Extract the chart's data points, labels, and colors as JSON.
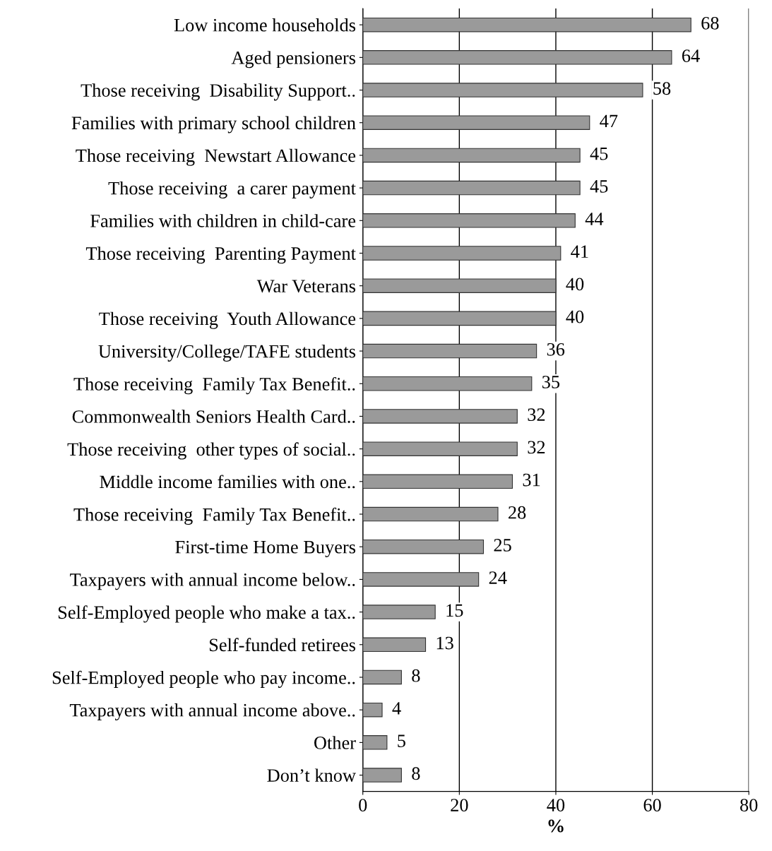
{
  "chart_data": {
    "type": "bar",
    "orientation": "horizontal",
    "xlabel": "%",
    "categories": [
      "Low income households",
      "Aged pensioners",
      "Those receiving  Disability Support..",
      "Families with primary school children",
      "Those receiving  Newstart Allowance",
      "Those receiving  a carer payment",
      "Families with children in child-care",
      "Those receiving  Parenting Payment",
      "War Veterans",
      "Those receiving  Youth Allowance",
      "University/College/TAFE students",
      "Those receiving  Family Tax Benefit..",
      "Commonwealth Seniors Health Card..",
      "Those receiving  other types of social..",
      "Middle income families with one..",
      "Those receiving  Family Tax Benefit..",
      "First-time Home Buyers",
      "Taxpayers with annual income below..",
      "Self-Employed people who make a tax..",
      "Self-funded retirees",
      "Self-Employed people who pay income..",
      "Taxpayers with annual income above..",
      "Other",
      "Don’t know"
    ],
    "values": [
      68,
      64,
      58,
      47,
      45,
      45,
      44,
      41,
      40,
      40,
      36,
      35,
      32,
      32,
      31,
      28,
      25,
      24,
      15,
      13,
      8,
      4,
      5,
      8
    ],
    "color": "#9a9a9a",
    "xlim": [
      0,
      80
    ],
    "xticks": [
      0,
      20,
      40,
      60,
      80
    ],
    "grid": "x",
    "data_labels": true,
    "legend": false
  }
}
